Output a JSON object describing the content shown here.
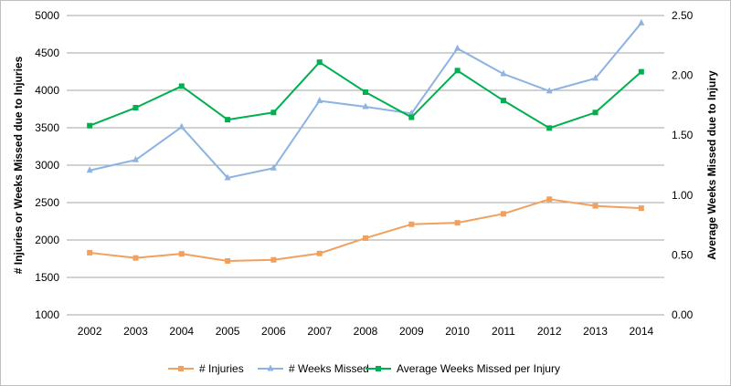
{
  "chart_data": {
    "type": "line",
    "title": "",
    "categories": [
      "2002",
      "2003",
      "2004",
      "2005",
      "2006",
      "2007",
      "2008",
      "2009",
      "2010",
      "2011",
      "2012",
      "2013",
      "2014"
    ],
    "y_left": {
      "label": "# Injuries or Weeks Missed due to Injuries",
      "ylim": [
        1000,
        5000
      ],
      "ticks": [
        "1000",
        "1500",
        "2000",
        "2500",
        "3000",
        "3500",
        "4000",
        "4500",
        "5000"
      ]
    },
    "y_right": {
      "label": "Average Weeks Missed due to Injury",
      "ylim": [
        0,
        2.5
      ],
      "ticks": [
        "0.00",
        "0.50",
        "1.00",
        "1.50",
        "2.00",
        "2.50"
      ]
    },
    "grid": true,
    "legend_position": "bottom",
    "series": [
      {
        "name": "# Injuries",
        "axis": "left",
        "marker": "square",
        "color": "#f0a160",
        "values": [
          1830,
          1760,
          1815,
          1720,
          1735,
          1820,
          2025,
          2210,
          2230,
          2350,
          2545,
          2455,
          2425
        ]
      },
      {
        "name": "# Weeks Missed",
        "axis": "left",
        "marker": "triangle",
        "color": "#8db3e2",
        "values": [
          2930,
          3070,
          3510,
          2830,
          2960,
          3860,
          3780,
          3690,
          4560,
          4220,
          3990,
          4160,
          4900
        ]
      },
      {
        "name": "Average Weeks Missed per Injury",
        "axis": "right",
        "marker": "square",
        "color": "#00b050",
        "values": [
          1.58,
          1.73,
          1.91,
          1.63,
          1.69,
          2.11,
          1.86,
          1.65,
          2.04,
          1.79,
          1.56,
          1.69,
          2.03
        ]
      }
    ]
  }
}
